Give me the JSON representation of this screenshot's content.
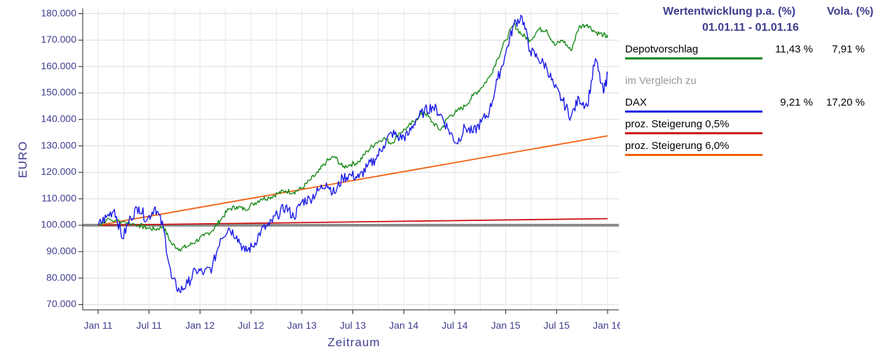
{
  "chart_data": {
    "type": "line",
    "ylabel": "EURO",
    "xlabel": "Zeitraum",
    "ylim": [
      68000,
      182000
    ],
    "y_ticks": [
      "70.000",
      "80.000",
      "90.000",
      "100.000",
      "110.000",
      "120.000",
      "130.000",
      "140.000",
      "150.000",
      "160.000",
      "170.000",
      "180.000"
    ],
    "y_tick_values": [
      70000,
      80000,
      90000,
      100000,
      110000,
      120000,
      130000,
      140000,
      150000,
      160000,
      170000,
      180000
    ],
    "x_ticks": [
      "Jan 11",
      "Jul 11",
      "Jan 12",
      "Jul 12",
      "Jan 13",
      "Jul 13",
      "Jan 14",
      "Jul 14",
      "Jan 15",
      "Jul 15",
      "Jan 16"
    ],
    "grid": true,
    "baseline": 100000,
    "series": [
      {
        "name": "Depotvorschlag",
        "color": "#1a8a1a",
        "values": [
          [
            0,
            100000
          ],
          [
            0.1,
            102000
          ],
          [
            0.3,
            101500
          ],
          [
            0.5,
            100000
          ],
          [
            0.6,
            99000
          ],
          [
            0.7,
            98500
          ],
          [
            0.8,
            99500
          ],
          [
            0.9,
            93000
          ],
          [
            1.0,
            91000
          ],
          [
            1.1,
            92000
          ],
          [
            1.2,
            94000
          ],
          [
            1.3,
            96000
          ],
          [
            1.4,
            98000
          ],
          [
            1.5,
            102000
          ],
          [
            1.6,
            106000
          ],
          [
            1.7,
            107000
          ],
          [
            1.8,
            106000
          ],
          [
            1.9,
            108000
          ],
          [
            2.0,
            110000
          ],
          [
            2.1,
            110500
          ],
          [
            2.2,
            112000
          ],
          [
            2.3,
            113000
          ],
          [
            2.4,
            112500
          ],
          [
            2.5,
            114000
          ],
          [
            2.6,
            117000
          ],
          [
            2.7,
            120000
          ],
          [
            2.8,
            124000
          ],
          [
            2.9,
            126000
          ],
          [
            3.0,
            122000
          ],
          [
            3.1,
            123000
          ],
          [
            3.2,
            124000
          ],
          [
            3.3,
            128000
          ],
          [
            3.4,
            131000
          ],
          [
            3.5,
            133000
          ],
          [
            3.6,
            131000
          ],
          [
            3.7,
            135000
          ],
          [
            3.8,
            137000
          ],
          [
            3.9,
            140000
          ],
          [
            4.0,
            143000
          ],
          [
            4.1,
            139000
          ],
          [
            4.2,
            136000
          ],
          [
            4.3,
            141000
          ],
          [
            4.4,
            143000
          ],
          [
            4.5,
            145000
          ],
          [
            4.6,
            149000
          ],
          [
            4.7,
            152000
          ],
          [
            4.8,
            156000
          ],
          [
            4.9,
            163000
          ],
          [
            5.0,
            170000
          ],
          [
            5.1,
            176000
          ],
          [
            5.2,
            172000
          ],
          [
            5.3,
            170000
          ],
          [
            5.4,
            174000
          ],
          [
            5.5,
            174000
          ],
          [
            5.6,
            168000
          ],
          [
            5.7,
            170000
          ],
          [
            5.8,
            166000
          ],
          [
            5.9,
            175000
          ],
          [
            6.0,
            176000
          ],
          [
            6.1,
            173000
          ],
          [
            6.2,
            172000
          ],
          [
            6.25,
            171000
          ]
        ]
      },
      {
        "name": "DAX",
        "color": "#1a1ae6",
        "values": [
          [
            0,
            100000
          ],
          [
            0.1,
            103000
          ],
          [
            0.2,
            106000
          ],
          [
            0.3,
            95000
          ],
          [
            0.4,
            103000
          ],
          [
            0.5,
            107000
          ],
          [
            0.6,
            102000
          ],
          [
            0.7,
            107000
          ],
          [
            0.8,
            99000
          ],
          [
            0.9,
            80000
          ],
          [
            1.0,
            75000
          ],
          [
            1.1,
            78000
          ],
          [
            1.2,
            83000
          ],
          [
            1.3,
            82000
          ],
          [
            1.4,
            84000
          ],
          [
            1.5,
            95000
          ],
          [
            1.6,
            99000
          ],
          [
            1.7,
            96000
          ],
          [
            1.8,
            90000
          ],
          [
            1.9,
            92000
          ],
          [
            2.0,
            98000
          ],
          [
            2.1,
            100000
          ],
          [
            2.2,
            104000
          ],
          [
            2.3,
            107000
          ],
          [
            2.4,
            103000
          ],
          [
            2.5,
            109000
          ],
          [
            2.6,
            110000
          ],
          [
            2.7,
            113000
          ],
          [
            2.8,
            116000
          ],
          [
            2.9,
            112000
          ],
          [
            3.0,
            118000
          ],
          [
            3.1,
            119000
          ],
          [
            3.2,
            118000
          ],
          [
            3.3,
            122000
          ],
          [
            3.4,
            125000
          ],
          [
            3.5,
            130000
          ],
          [
            3.6,
            135000
          ],
          [
            3.7,
            133000
          ],
          [
            3.8,
            134000
          ],
          [
            3.9,
            140000
          ],
          [
            4.0,
            143000
          ],
          [
            4.1,
            145000
          ],
          [
            4.2,
            142000
          ],
          [
            4.3,
            136000
          ],
          [
            4.4,
            131000
          ],
          [
            4.5,
            137000
          ],
          [
            4.6,
            135000
          ],
          [
            4.7,
            139000
          ],
          [
            4.8,
            143000
          ],
          [
            4.9,
            155000
          ],
          [
            5.0,
            165000
          ],
          [
            5.1,
            176000
          ],
          [
            5.2,
            179000
          ],
          [
            5.3,
            166000
          ],
          [
            5.4,
            163000
          ],
          [
            5.5,
            160000
          ],
          [
            5.6,
            152000
          ],
          [
            5.7,
            147000
          ],
          [
            5.8,
            141000
          ],
          [
            5.9,
            148000
          ],
          [
            6.0,
            145000
          ],
          [
            6.1,
            163000
          ],
          [
            6.2,
            150000
          ],
          [
            6.25,
            157000
          ]
        ]
      },
      {
        "name": "proz. Steigerung 0,5%",
        "color": "#cc1111",
        "values": [
          [
            0,
            100000
          ],
          [
            6.25,
            102500
          ]
        ]
      },
      {
        "name": "proz. Steigerung 6,0%",
        "color": "#f06010",
        "values": [
          [
            0,
            100000
          ],
          [
            6.25,
            133800
          ]
        ]
      }
    ]
  },
  "legend": {
    "header_line1": "Wertentwicklung p.a. (%)",
    "header_vola": "Vola. (%)",
    "header_line2": "01.01.11 - 01.01.16",
    "compare_label": "im Vergleich zu",
    "items": [
      {
        "label": "Depotvorschlag",
        "perf": "11,43 %",
        "vola": "7,91 %",
        "color": "#1a8a1a"
      },
      {
        "label": "DAX",
        "perf": "9,21 %",
        "vola": "17,20 %",
        "color": "#1a1ae6"
      },
      {
        "label": "proz. Steigerung 0,5%",
        "perf": "",
        "vola": "",
        "color": "#cc1111"
      },
      {
        "label": "proz. Steigerung 6,0%",
        "perf": "",
        "vola": "",
        "color": "#f06010"
      }
    ]
  }
}
